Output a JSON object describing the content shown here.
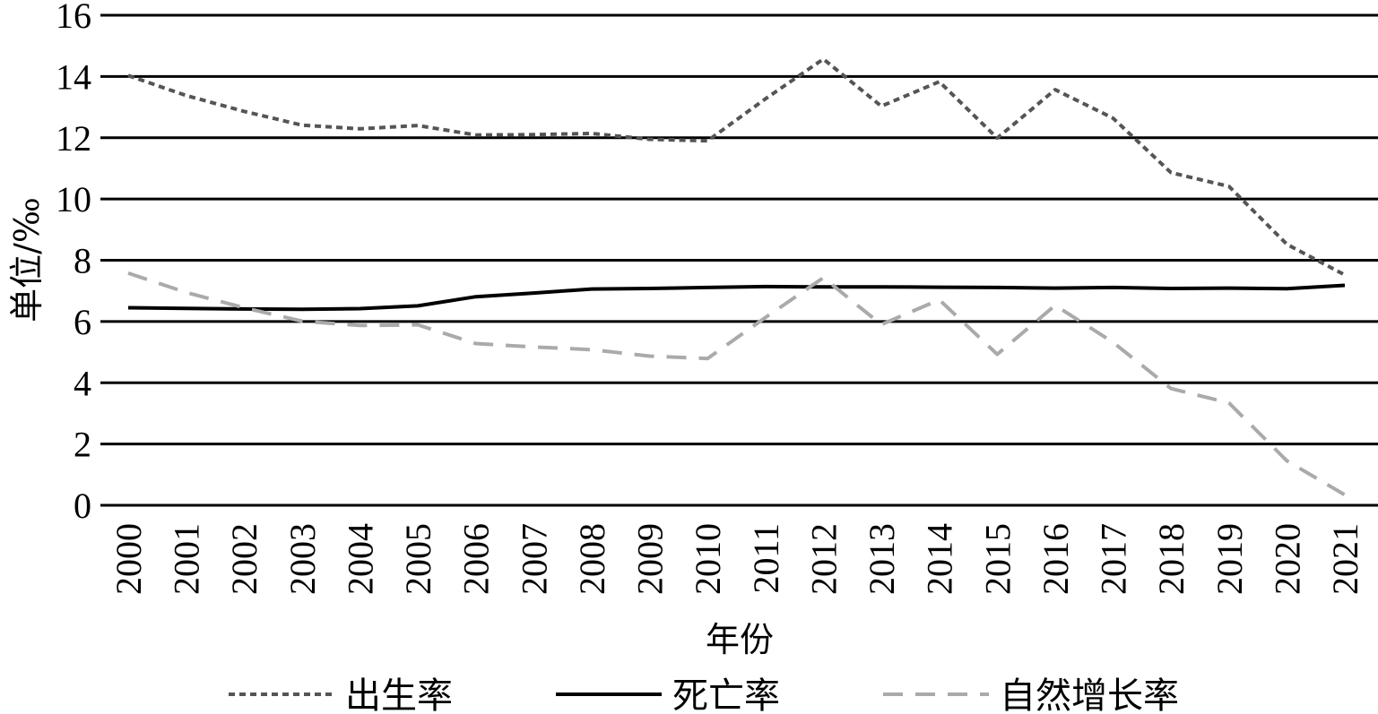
{
  "chart_data": {
    "type": "line",
    "title": "",
    "xlabel": "年份",
    "ylabel": "单位/‰",
    "ylim": [
      0,
      16
    ],
    "yticks": [
      0,
      2,
      4,
      6,
      8,
      10,
      12,
      14,
      16
    ],
    "grid": true,
    "legend_position": "bottom",
    "categories": [
      "2000",
      "2001",
      "2002",
      "2003",
      "2004",
      "2005",
      "2006",
      "2007",
      "2008",
      "2009",
      "2010",
      "2011",
      "2012",
      "2013",
      "2014",
      "2015",
      "2016",
      "2017",
      "2018",
      "2019",
      "2020",
      "2021"
    ],
    "series": [
      {
        "name": "出生率",
        "style": "dotted",
        "color": "#555555",
        "values": [
          14.03,
          13.38,
          12.86,
          12.41,
          12.29,
          12.4,
          12.09,
          12.1,
          12.14,
          11.95,
          11.9,
          13.27,
          14.57,
          13.03,
          13.83,
          11.99,
          13.57,
          12.64,
          10.86,
          10.41,
          8.52,
          7.52
        ]
      },
      {
        "name": "死亡率",
        "style": "solid",
        "color": "#000000",
        "values": [
          6.45,
          6.43,
          6.41,
          6.4,
          6.42,
          6.51,
          6.81,
          6.93,
          7.06,
          7.08,
          7.11,
          7.14,
          7.13,
          7.13,
          7.12,
          7.11,
          7.09,
          7.11,
          7.08,
          7.09,
          7.07,
          7.18
        ]
      },
      {
        "name": "自然增长率",
        "style": "dashed",
        "color": "#aaaaaa",
        "values": [
          7.58,
          6.95,
          6.45,
          6.01,
          5.87,
          5.89,
          5.28,
          5.17,
          5.08,
          4.87,
          4.79,
          6.13,
          7.43,
          5.9,
          6.71,
          4.93,
          6.53,
          5.32,
          3.81,
          3.34,
          1.45,
          0.34
        ]
      }
    ]
  }
}
